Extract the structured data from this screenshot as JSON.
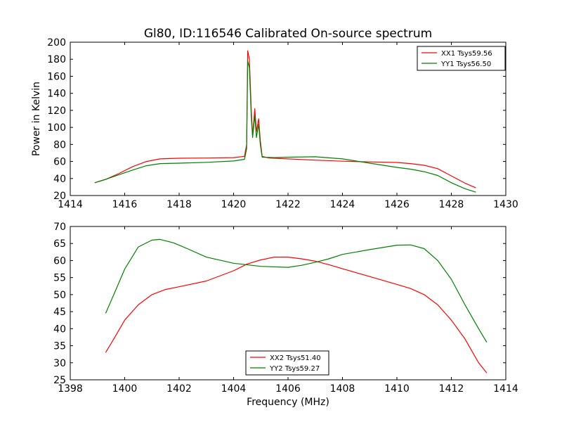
{
  "chart_data": [
    {
      "type": "line",
      "title": "Gl80, ID:116546 Calibrated On-source spectrum",
      "xlabel": "",
      "ylabel": "Power in Kelvin",
      "xlim": [
        1414,
        1430
      ],
      "ylim": [
        20,
        200
      ],
      "xticks": [
        1414,
        1416,
        1418,
        1420,
        1422,
        1424,
        1426,
        1428,
        1430
      ],
      "yticks": [
        20,
        40,
        60,
        80,
        100,
        120,
        140,
        160,
        180,
        200
      ],
      "legend_position": "upper right",
      "series": [
        {
          "name": "XX1 Tsys59.56",
          "color": "#ff0000",
          "points": [
            [
              1414.9,
              35
            ],
            [
              1415.3,
              39
            ],
            [
              1415.8,
              46
            ],
            [
              1416.3,
              54
            ],
            [
              1416.8,
              60
            ],
            [
              1417.3,
              63
            ],
            [
              1418,
              63.8
            ],
            [
              1419,
              64
            ],
            [
              1420,
              64.5
            ],
            [
              1420.4,
              66
            ],
            [
              1420.48,
              80
            ],
            [
              1420.52,
              190
            ],
            [
              1420.58,
              180
            ],
            [
              1420.65,
              120
            ],
            [
              1420.7,
              90
            ],
            [
              1420.78,
              122
            ],
            [
              1420.84,
              95
            ],
            [
              1420.92,
              110
            ],
            [
              1420.98,
              85
            ],
            [
              1421.05,
              66
            ],
            [
              1421.3,
              64
            ],
            [
              1422,
              63
            ],
            [
              1423,
              61.5
            ],
            [
              1424,
              60.3
            ],
            [
              1425,
              59.5
            ],
            [
              1426,
              58.8
            ],
            [
              1426.5,
              57.5
            ],
            [
              1427,
              55.5
            ],
            [
              1427.5,
              51.5
            ],
            [
              1428,
              43
            ],
            [
              1428.5,
              34.5
            ],
            [
              1428.9,
              29
            ]
          ]
        },
        {
          "name": "YY1 Tsys56.50",
          "color": "#008000",
          "points": [
            [
              1414.9,
              35
            ],
            [
              1415.3,
              39
            ],
            [
              1415.8,
              44.5
            ],
            [
              1416.3,
              50
            ],
            [
              1416.8,
              55
            ],
            [
              1417.3,
              57.5
            ],
            [
              1418,
              58
            ],
            [
              1419,
              59
            ],
            [
              1420,
              60.5
            ],
            [
              1420.4,
              62.5
            ],
            [
              1420.48,
              75
            ],
            [
              1420.52,
              178
            ],
            [
              1420.58,
              170
            ],
            [
              1420.65,
              112
            ],
            [
              1420.7,
              88
            ],
            [
              1420.78,
              114
            ],
            [
              1420.84,
              88
            ],
            [
              1420.92,
              104
            ],
            [
              1420.98,
              80
            ],
            [
              1421.05,
              65
            ],
            [
              1421.5,
              64.5
            ],
            [
              1422,
              65
            ],
            [
              1423,
              65.5
            ],
            [
              1424,
              63
            ],
            [
              1425,
              58
            ],
            [
              1426,
              53
            ],
            [
              1426.5,
              51
            ],
            [
              1427,
              48
            ],
            [
              1427.5,
              43.5
            ],
            [
              1428,
              35
            ],
            [
              1428.5,
              28
            ],
            [
              1428.9,
              24
            ]
          ]
        }
      ]
    },
    {
      "type": "line",
      "title": "",
      "xlabel": "Frequency (MHz)",
      "ylabel": "",
      "xlim": [
        1398,
        1414
      ],
      "ylim": [
        25,
        70
      ],
      "xticks": [
        1398,
        1400,
        1402,
        1404,
        1406,
        1408,
        1410,
        1412,
        1414
      ],
      "yticks": [
        25,
        30,
        35,
        40,
        45,
        50,
        55,
        60,
        65,
        70
      ],
      "legend_position": "lower center",
      "series": [
        {
          "name": "XX2 Tsys51.40",
          "color": "#ff0000",
          "points": [
            [
              1399.3,
              33
            ],
            [
              1399.6,
              37
            ],
            [
              1400,
              42.5
            ],
            [
              1400.5,
              47
            ],
            [
              1401,
              50
            ],
            [
              1401.5,
              51.5
            ],
            [
              1402,
              52.3
            ],
            [
              1403,
              54
            ],
            [
              1404,
              57
            ],
            [
              1404.5,
              59
            ],
            [
              1405,
              60.2
            ],
            [
              1405.5,
              61
            ],
            [
              1406,
              61
            ],
            [
              1406.5,
              60.5
            ],
            [
              1407,
              59.8
            ],
            [
              1407.5,
              58.8
            ],
            [
              1408,
              57.6
            ],
            [
              1409,
              55.3
            ],
            [
              1410,
              53
            ],
            [
              1410.5,
              51.8
            ],
            [
              1411,
              50
            ],
            [
              1411.5,
              47
            ],
            [
              1412,
              42.5
            ],
            [
              1412.5,
              37
            ],
            [
              1413,
              30
            ],
            [
              1413.3,
              27
            ]
          ]
        },
        {
          "name": "YY2 Tsys59.27",
          "color": "#008000",
          "points": [
            [
              1399.3,
              44.5
            ],
            [
              1399.6,
              50
            ],
            [
              1400,
              57.5
            ],
            [
              1400.5,
              64
            ],
            [
              1401,
              66
            ],
            [
              1401.3,
              66.2
            ],
            [
              1401.8,
              65.2
            ],
            [
              1402.3,
              63.5
            ],
            [
              1403,
              61
            ],
            [
              1404,
              59.2
            ],
            [
              1405,
              58.3
            ],
            [
              1406,
              58
            ],
            [
              1406.5,
              58.6
            ],
            [
              1407,
              59.5
            ],
            [
              1407.5,
              60.5
            ],
            [
              1408,
              61.8
            ],
            [
              1409,
              63.2
            ],
            [
              1410,
              64.5
            ],
            [
              1410.5,
              64.6
            ],
            [
              1411,
              63.5
            ],
            [
              1411.5,
              60
            ],
            [
              1412,
              54.5
            ],
            [
              1412.5,
              47
            ],
            [
              1413,
              40
            ],
            [
              1413.3,
              36
            ]
          ]
        }
      ]
    }
  ]
}
